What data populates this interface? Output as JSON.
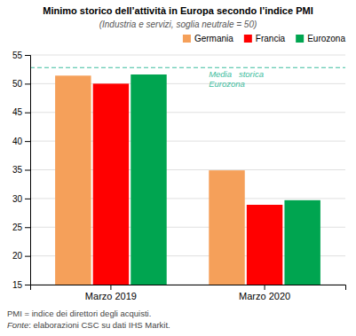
{
  "chart_data": {
    "type": "bar",
    "title": "Minimo storico dell’attività in Europa secondo l’indice PMI",
    "subtitle": "(Industria e servizi, soglia neutrale = 50)",
    "categories": [
      "Marzo 2019",
      "Marzo 2020"
    ],
    "series": [
      {
        "name": "Germania",
        "color": "#F5A05A",
        "values": [
          51.4,
          34.9
        ]
      },
      {
        "name": "Francia",
        "color": "#FF0000",
        "values": [
          50.0,
          28.9
        ]
      },
      {
        "name": "Eurozona",
        "color": "#00A550",
        "values": [
          51.6,
          29.7
        ]
      }
    ],
    "ylim": [
      15,
      55
    ],
    "yticks": [
      15,
      20,
      25,
      30,
      35,
      40,
      45,
      50,
      55
    ],
    "grid": true,
    "legend": "upper right",
    "hline": {
      "value": 52.8,
      "color": "#3DBD9E",
      "label": [
        "Media   storica",
        "Eurozona"
      ]
    },
    "notes": [
      "PMI = indice dei direttori degli acquisti."
    ],
    "source": [
      "Fonte",
      ": elaborazioni CSC su dati IHS Markit."
    ]
  }
}
